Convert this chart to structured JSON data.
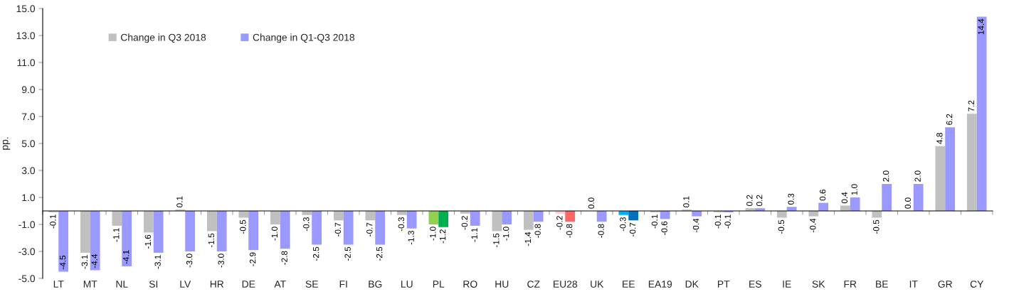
{
  "chart_data": {
    "type": "bar",
    "ylabel": "pp.",
    "categories": [
      "LT",
      "MT",
      "NL",
      "SI",
      "LV",
      "HR",
      "DE",
      "AT",
      "SE",
      "FI",
      "BG",
      "LU",
      "PL",
      "RO",
      "HU",
      "CZ",
      "EU28",
      "UK",
      "EE",
      "EA19",
      "DK",
      "PT",
      "ES",
      "IE",
      "SK",
      "FR",
      "BE",
      "IT",
      "GR",
      "CY"
    ],
    "series": [
      {
        "name": "Change in Q3 2018",
        "color": "#c0c0c0",
        "colors": [
          "#c0c0c0",
          "#c0c0c0",
          "#c0c0c0",
          "#c0c0c0",
          "#c0c0c0",
          "#c0c0c0",
          "#c0c0c0",
          "#c0c0c0",
          "#c0c0c0",
          "#c0c0c0",
          "#c0c0c0",
          "#c0c0c0",
          "#92d050",
          "#c0c0c0",
          "#c0c0c0",
          "#c0c0c0",
          "#ffcccc",
          "#c0c0c0",
          "#00b0f0",
          "#c0c0c0",
          "#c0c0c0",
          "#c0c0c0",
          "#c0c0c0",
          "#c0c0c0",
          "#c0c0c0",
          "#c0c0c0",
          "#c0c0c0",
          "#c0c0c0",
          "#c0c0c0",
          "#c0c0c0"
        ],
        "values": [
          -0.1,
          -3.1,
          -1.1,
          -1.6,
          0.1,
          -1.5,
          -0.5,
          -1.0,
          -0.3,
          -0.7,
          -0.7,
          -0.3,
          -1.0,
          -0.2,
          -1.5,
          -1.4,
          -0.2,
          0.0,
          -0.3,
          -0.1,
          0.1,
          -0.1,
          0.2,
          -0.5,
          -0.4,
          0.4,
          -0.5,
          0.0,
          4.8,
          7.2
        ],
        "value_labels": [
          "-0.1",
          "-3.1",
          "-1.1",
          "-1.6",
          "0.1",
          "-1.5",
          "-0.5",
          "-1.0",
          "-0.3",
          "-0.7",
          "-0.7",
          "-0.3",
          "-1.0",
          "-0.2",
          "-1.5",
          "-1.4",
          "-0.2",
          "0.0",
          "-0.3",
          "-0.1",
          "0.1",
          "-0.1",
          "0.2",
          "-0.5",
          "-0.4",
          "0.4",
          "-0.5",
          "0.0",
          "4.8",
          "7.2"
        ]
      },
      {
        "name": "Change in Q1-Q3 2018",
        "color": "#9999ff",
        "colors": [
          "#9999ff",
          "#9999ff",
          "#9999ff",
          "#9999ff",
          "#9999ff",
          "#9999ff",
          "#9999ff",
          "#9999ff",
          "#9999ff",
          "#9999ff",
          "#9999ff",
          "#9999ff",
          "#00b050",
          "#9999ff",
          "#9999ff",
          "#9999ff",
          "#ff6666",
          "#9999ff",
          "#0070c0",
          "#9999ff",
          "#9999ff",
          "#9999ff",
          "#9999ff",
          "#9999ff",
          "#9999ff",
          "#9999ff",
          "#9999ff",
          "#9999ff",
          "#9999ff",
          "#9999ff"
        ],
        "values": [
          -4.5,
          -4.4,
          -4.1,
          -3.1,
          -3.0,
          -3.0,
          -2.9,
          -2.8,
          -2.5,
          -2.5,
          -2.5,
          -1.3,
          -1.2,
          -1.1,
          -1.0,
          -0.8,
          -0.8,
          -0.8,
          -0.7,
          -0.6,
          -0.4,
          -0.1,
          0.2,
          0.3,
          0.6,
          1.0,
          2.0,
          2.0,
          6.2,
          14.4
        ],
        "value_labels": [
          "-4.5",
          "-4.4",
          "-4.1",
          "-3.1",
          "-3.0",
          "-3.0",
          "-2.9",
          "-2.8",
          "-2.5",
          "-2.5",
          "-2.5",
          "-1.3",
          "-1.2",
          "-1.1",
          "-1.0",
          "-0.8",
          "-0.8",
          "-0.8",
          "-0.7",
          "-0.6",
          "-0.4",
          "-0.1",
          "0.2",
          "0.3",
          "0.6",
          "1.0",
          "2.0",
          "2.0",
          "6.2",
          "14.4"
        ]
      }
    ],
    "ylim": [
      -5,
      15
    ],
    "yticks": [
      {
        "value": -5,
        "label": "-5.0"
      },
      {
        "value": -3,
        "label": "-3.0"
      },
      {
        "value": -1,
        "label": "-1.0"
      },
      {
        "value": 1,
        "label": "1.0"
      },
      {
        "value": 3,
        "label": "3.0"
      },
      {
        "value": 5,
        "label": "5.0"
      },
      {
        "value": 7,
        "label": "7.0"
      },
      {
        "value": 9,
        "label": "9.0"
      },
      {
        "value": 11,
        "label": "11.0"
      },
      {
        "value": 13,
        "label": "13.0"
      },
      {
        "value": 15,
        "label": "15.0"
      }
    ],
    "legend": "top left"
  }
}
